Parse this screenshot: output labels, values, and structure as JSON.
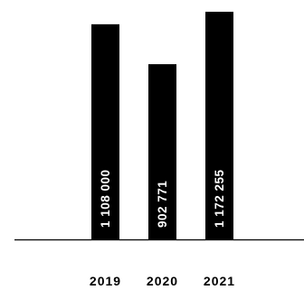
{
  "chart_data": {
    "type": "bar",
    "orientation": "vertical",
    "categories": [
      "2019",
      "2020",
      "2021"
    ],
    "values": [
      1108000,
      902771,
      1172255
    ],
    "data_labels": [
      "1 108 000",
      "902 771",
      "1 172 255"
    ],
    "title": "",
    "xlabel": "",
    "ylabel": "",
    "ylim": [
      0,
      1172255
    ],
    "grid": false,
    "legend": "none",
    "bar_color": "#000000",
    "label_color": "#ffffff",
    "axis_color": "#000000"
  }
}
